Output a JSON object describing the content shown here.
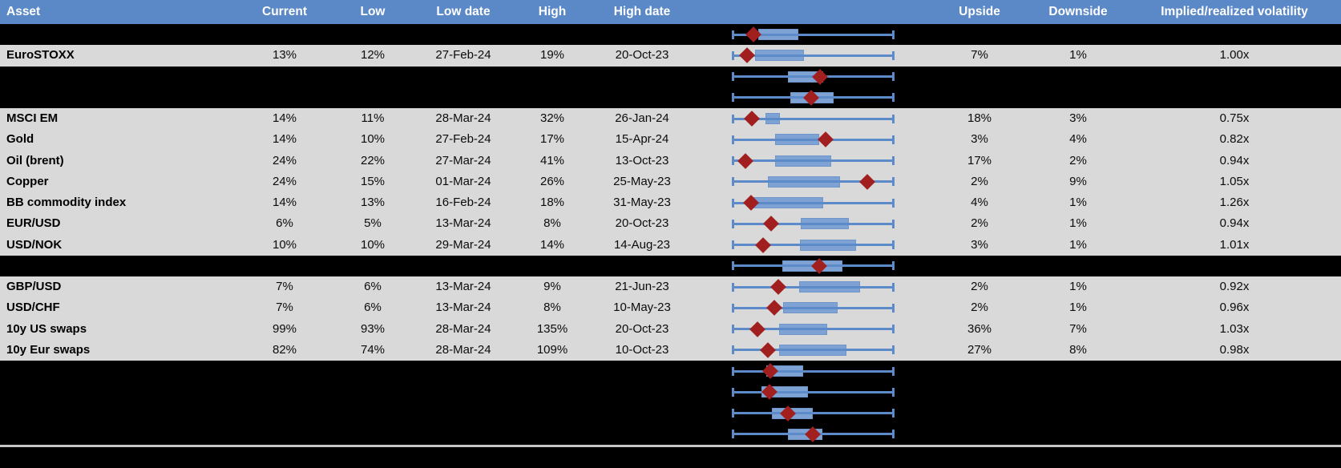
{
  "colors": {
    "header_bg": "#5B88C6",
    "header_text": "#FFFFFF",
    "row_gray": "#D9D9D9",
    "row_black": "#000000",
    "box_fill": "#7EA2D4",
    "box_edge": "#6E96C9",
    "whisker_line": "#5D8AC8",
    "marker_red": "#A11F1F",
    "divider_gray": "#C6C6C6"
  },
  "chart_data": {
    "type": "table",
    "embedded_chart": "horizontal-boxplot-per-row",
    "boxplot_axis": {
      "note": "no numeric axis shown in image; q1/q3/marker are fractions 0-1 of plot width, whiskers span full 0-1",
      "min": 0,
      "max": 1,
      "marker_glyph": "red diamond"
    },
    "header": {
      "asset": "Asset",
      "current": "Current",
      "low": "Low",
      "low_date": "Low date",
      "high": "High",
      "high_date": "High date",
      "upside": "Upside",
      "downside": "Downside",
      "ivol": "Implied/realized volatility"
    },
    "rows": [
      {
        "type": "spacer",
        "box": {
          "q1": 0.163,
          "q3": 0.409,
          "m": 0.133
        }
      },
      {
        "type": "data",
        "name": "EuroSTOXX",
        "current": "13%",
        "low": "12%",
        "low_date": "27-Feb-24",
        "high": "19%",
        "high_date": "20-Oct-23",
        "upside": "7%",
        "downside": "1%",
        "ivol": "1.00x",
        "box": {
          "q1": 0.143,
          "q3": 0.443,
          "m": 0.094
        }
      },
      {
        "type": "spacer",
        "box": {
          "q1": 0.345,
          "q3": 0.562,
          "m": 0.542
        }
      },
      {
        "type": "spacer",
        "box": {
          "q1": 0.36,
          "q3": 0.626,
          "m": 0.488
        }
      },
      {
        "type": "data",
        "name": "MSCI EM",
        "current": "14%",
        "low": "11%",
        "low_date": "28-Mar-24",
        "high": "32%",
        "high_date": "26-Jan-24",
        "upside": "18%",
        "downside": "3%",
        "ivol": "0.75x",
        "box": {
          "q1": 0.207,
          "q3": 0.296,
          "m": 0.123
        }
      },
      {
        "type": "data",
        "name": "Gold",
        "current": "14%",
        "low": "10%",
        "low_date": "27-Feb-24",
        "high": "17%",
        "high_date": "15-Apr-24",
        "upside": "3%",
        "downside": "4%",
        "ivol": "0.82x",
        "box": {
          "q1": 0.266,
          "q3": 0.537,
          "m": 0.576
        }
      },
      {
        "type": "data",
        "name": "Oil (brent)",
        "current": "24%",
        "low": "22%",
        "low_date": "27-Mar-24",
        "high": "41%",
        "high_date": "13-Oct-23",
        "upside": "17%",
        "downside": "2%",
        "ivol": "0.94x",
        "box": {
          "q1": 0.266,
          "q3": 0.611,
          "m": 0.084
        }
      },
      {
        "type": "data",
        "name": "Copper",
        "current": "24%",
        "low": "15%",
        "low_date": "01-Mar-24",
        "high": "26%",
        "high_date": "25-May-23",
        "upside": "2%",
        "downside": "9%",
        "ivol": "1.05x",
        "box": {
          "q1": 0.222,
          "q3": 0.665,
          "m": 0.833
        }
      },
      {
        "type": "data",
        "name": "BB commodity index",
        "current": "14%",
        "low": "13%",
        "low_date": "16-Feb-24",
        "high": "18%",
        "high_date": "31-May-23",
        "upside": "4%",
        "downside": "1%",
        "ivol": "1.26x",
        "box": {
          "q1": 0.133,
          "q3": 0.562,
          "m": 0.118
        }
      },
      {
        "type": "data",
        "name": "EUR/USD",
        "current": "6%",
        "low": "5%",
        "low_date": "13-Mar-24",
        "high": "8%",
        "high_date": "20-Oct-23",
        "upside": "2%",
        "downside": "1%",
        "ivol": "0.94x",
        "box": {
          "q1": 0.424,
          "q3": 0.719,
          "m": 0.241
        }
      },
      {
        "type": "data",
        "name": "USD/NOK",
        "current": "10%",
        "low": "10%",
        "low_date": "29-Mar-24",
        "high": "14%",
        "high_date": "14-Aug-23",
        "upside": "3%",
        "downside": "1%",
        "ivol": "1.01x",
        "box": {
          "q1": 0.419,
          "q3": 0.764,
          "m": 0.192
        }
      },
      {
        "type": "spacer",
        "box": {
          "q1": 0.31,
          "q3": 0.68,
          "m": 0.537
        }
      },
      {
        "type": "data",
        "name": "GBP/USD",
        "current": "7%",
        "low": "6%",
        "low_date": "13-Mar-24",
        "high": "9%",
        "high_date": "21-Jun-23",
        "upside": "2%",
        "downside": "1%",
        "ivol": "0.92x",
        "box": {
          "q1": 0.414,
          "q3": 0.788,
          "m": 0.286
        }
      },
      {
        "type": "data",
        "name": "USD/CHF",
        "current": "7%",
        "low": "6%",
        "low_date": "13-Mar-24",
        "high": "8%",
        "high_date": "10-May-23",
        "upside": "2%",
        "downside": "1%",
        "ivol": "0.96x",
        "box": {
          "q1": 0.315,
          "q3": 0.65,
          "m": 0.261
        }
      },
      {
        "type": "data",
        "name": "10y US swaps",
        "current": "99%",
        "low": "93%",
        "low_date": "28-Mar-24",
        "high": "135%",
        "high_date": "20-Oct-23",
        "upside": "36%",
        "downside": "7%",
        "ivol": "1.03x",
        "box": {
          "q1": 0.291,
          "q3": 0.586,
          "m": 0.158
        }
      },
      {
        "type": "data",
        "name": "10y Eur swaps",
        "current": "82%",
        "low": "74%",
        "low_date": "28-Mar-24",
        "high": "109%",
        "high_date": "10-Oct-23",
        "upside": "27%",
        "downside": "8%",
        "ivol": "0.98x",
        "box": {
          "q1": 0.291,
          "q3": 0.704,
          "m": 0.222
        }
      },
      {
        "type": "spacer",
        "box": {
          "q1": 0.212,
          "q3": 0.438,
          "m": 0.236
        }
      },
      {
        "type": "spacer",
        "box": {
          "q1": 0.182,
          "q3": 0.468,
          "m": 0.232
        }
      },
      {
        "type": "spacer",
        "box": {
          "q1": 0.246,
          "q3": 0.498,
          "m": 0.345
        }
      },
      {
        "type": "spacer",
        "box": {
          "q1": 0.345,
          "q3": 0.557,
          "m": 0.498
        }
      }
    ]
  }
}
